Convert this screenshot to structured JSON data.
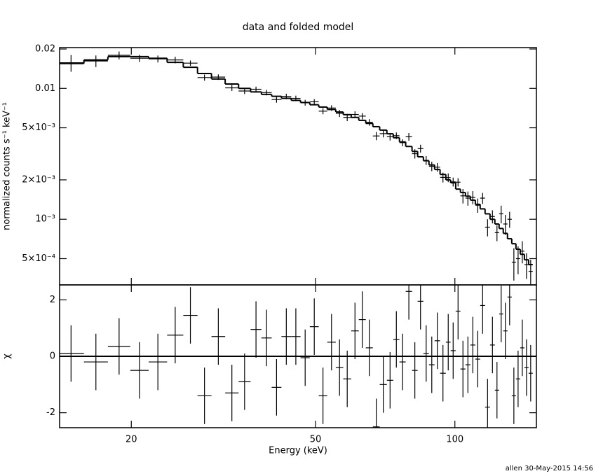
{
  "title": "data and folded model",
  "footer": "allen 30-May-2015 14:56",
  "chart_data": [
    {
      "type": "spectrum",
      "y_label": "normalized counts s⁻¹ keV⁻¹",
      "log_x": true,
      "log_y": true,
      "xlim": [
        14,
        150
      ],
      "ylim": [
        0.000315,
        0.0205
      ],
      "yticks": [
        0.02,
        0.01,
        {
          "value": 0.005,
          "label": "5×10⁻³"
        },
        {
          "value": 0.002,
          "label": "2×10⁻³"
        },
        {
          "value": 0.001,
          "label": "10⁻³"
        },
        {
          "value": 0.0005,
          "label": "5×10⁻⁴"
        }
      ],
      "bin_edges": [
        13.9,
        15.8,
        17.8,
        19.9,
        21.8,
        23.9,
        25.9,
        27.8,
        29.8,
        31.9,
        34.1,
        36.2,
        38.2,
        40.2,
        42.2,
        44.3,
        46.4,
        48.6,
        50.8,
        53.0,
        55.3,
        57.4,
        59.7,
        62.0,
        64.2,
        66.5,
        68.8,
        71.3,
        73.6,
        75.9,
        78.3,
        80.8,
        83.1,
        85.5,
        87.9,
        90.4,
        92.9,
        95.6,
        97.9,
        100.4,
        102.8,
        105.4,
        108.0,
        110.7,
        113.4,
        116.2,
        119.1,
        122.0,
        124.6,
        127.2,
        129.9,
        132.7,
        135.5,
        138.4,
        141.3,
        144.3,
        147.3
      ],
      "data": {
        "color": "#000000",
        "values": [
          0.0157,
          0.0162,
          0.0179,
          0.017,
          0.0168,
          0.0165,
          0.0156,
          0.0121,
          0.0122,
          0.0101,
          0.00955,
          0.00985,
          0.00929,
          0.00822,
          0.00869,
          0.00839,
          0.00778,
          0.0079,
          0.0067,
          0.00708,
          0.00644,
          0.006,
          0.00632,
          0.00614,
          0.0055,
          0.00433,
          0.00451,
          0.00427,
          0.00435,
          0.00385,
          0.00427,
          0.00317,
          0.00347,
          0.00282,
          0.00254,
          0.0025,
          0.00209,
          0.00208,
          0.00193,
          0.00192,
          0.00151,
          0.00145,
          0.00147,
          0.00128,
          0.00145,
          0.00087,
          0.00105,
          0.00079,
          0.0011,
          0.00092,
          0.001,
          0.00047,
          0.0005,
          0.00057,
          0.00045,
          0.0004
        ],
        "errors": [
          0.0023,
          0.00165,
          0.00123,
          0.00105,
          0.00102,
          0.00095,
          0.00073,
          0.00065,
          0.00059,
          0.00054,
          0.0005,
          0.00047,
          0.00045,
          0.00044,
          0.00042,
          0.00041,
          0.00039,
          0.00038,
          0.00036,
          0.00035,
          0.0004,
          0.00038,
          0.00036,
          0.00034,
          0.00032,
          0.00031,
          0.00029,
          0.00027,
          0.00025,
          0.00023,
          0.00029,
          0.00026,
          0.00024,
          0.00022,
          0.00021,
          0.00019,
          0.00018,
          0.00016,
          0.00015,
          0.00014,
          0.00019,
          0.00018,
          0.00017,
          0.00016,
          0.00014,
          0.00013,
          0.00012,
          0.00011,
          0.00017,
          0.00016,
          0.00014,
          0.00013,
          0.00012,
          0.00011,
          0.0001,
          9e-05
        ]
      },
      "model": {
        "color": "#000000",
        "values": [
          0.0155,
          0.0165,
          0.0175,
          0.0175,
          0.017,
          0.0158,
          0.0145,
          0.013,
          0.0118,
          0.0108,
          0.01,
          0.0094,
          0.009,
          0.0087,
          0.0084,
          0.0081,
          0.0078,
          0.0075,
          0.0072,
          0.0069,
          0.0066,
          0.0063,
          0.006,
          0.0057,
          0.0054,
          0.0051,
          0.0048,
          0.0045,
          0.0042,
          0.0039,
          0.0036,
          0.0033,
          0.003,
          0.0028,
          0.0026,
          0.0024,
          0.0022,
          0.002,
          0.0019,
          0.0017,
          0.0016,
          0.0015,
          0.0014,
          0.0013,
          0.0012,
          0.0011,
          0.001,
          0.00092,
          0.00085,
          0.00078,
          0.00071,
          0.00065,
          0.00059,
          0.00054,
          0.00049,
          0.00045
        ]
      }
    },
    {
      "type": "residual",
      "x_label": "Energy (keV)",
      "y_label": "χ",
      "log_x": true,
      "log_y": false,
      "xlim": [
        14,
        150
      ],
      "ylim": [
        -2.53,
        2.53
      ],
      "xticks": [
        20,
        50,
        100
      ],
      "yticks": [
        2,
        0,
        -2
      ],
      "reference_line": 0,
      "reference_color": "#00ee00",
      "color": "#000000",
      "bin_edges": [
        13.9,
        15.8,
        17.8,
        19.9,
        21.8,
        23.9,
        25.9,
        27.8,
        29.8,
        31.9,
        34.1,
        36.2,
        38.2,
        40.2,
        42.2,
        44.3,
        46.4,
        48.6,
        50.8,
        53.0,
        55.3,
        57.4,
        59.7,
        62.0,
        64.2,
        66.5,
        68.8,
        71.3,
        73.6,
        75.9,
        78.3,
        80.8,
        83.1,
        85.5,
        87.9,
        90.4,
        92.9,
        95.6,
        97.9,
        100.4,
        102.8,
        105.4,
        108.0,
        110.7,
        113.4,
        116.2,
        119.1,
        122.0,
        124.6,
        127.2,
        129.9,
        132.7,
        135.5,
        138.4,
        141.3,
        144.3,
        147.3
      ],
      "values": [
        0.1,
        -0.2,
        0.35,
        -0.5,
        -0.2,
        0.75,
        1.45,
        -1.4,
        0.7,
        -1.3,
        -0.9,
        0.95,
        0.65,
        -1.1,
        0.7,
        0.7,
        -0.05,
        1.05,
        -1.4,
        0.5,
        -0.4,
        -0.8,
        0.9,
        1.3,
        0.3,
        -2.5,
        -1.0,
        -0.85,
        0.6,
        -0.2,
        2.3,
        -0.5,
        1.95,
        0.1,
        -0.3,
        0.55,
        -0.6,
        0.5,
        0.2,
        1.6,
        -0.45,
        -0.3,
        0.4,
        -0.1,
        1.8,
        -1.8,
        0.4,
        -1.2,
        1.5,
        0.9,
        2.1,
        -1.4,
        -0.8,
        0.3,
        -0.4,
        -0.6
      ],
      "errors": [
        1,
        1,
        1,
        1,
        1,
        1,
        1,
        1,
        1,
        1,
        1,
        1,
        1,
        1,
        1,
        1,
        1,
        1,
        1,
        1,
        1,
        1,
        1,
        1,
        1,
        1,
        1,
        1,
        1,
        1,
        1,
        1,
        1,
        1,
        1,
        1,
        1,
        1,
        1,
        1,
        1,
        1,
        1,
        1,
        1,
        1,
        1,
        1,
        1,
        1,
        1,
        1,
        1,
        1,
        1,
        1
      ]
    }
  ]
}
